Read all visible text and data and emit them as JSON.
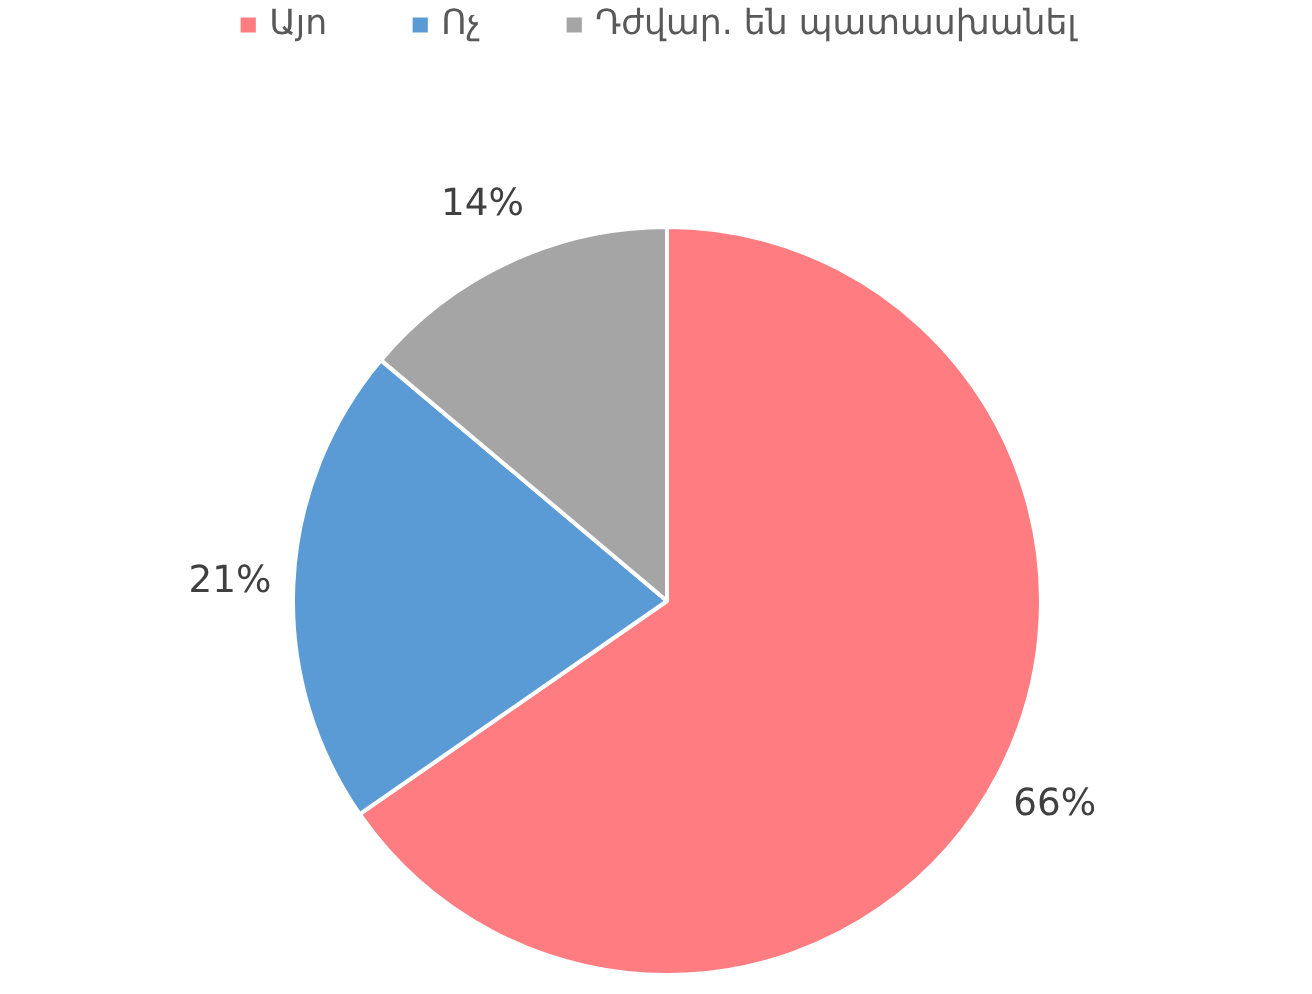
{
  "chart_data": {
    "type": "pie",
    "categories": [
      "Այո",
      "Ոչ",
      "Դժվար. են պատասխանել"
    ],
    "values": [
      66,
      21,
      14
    ],
    "colors": [
      "#ff7c80",
      "#5b9bd5",
      "#a5a5a5"
    ],
    "value_labels": [
      "66%",
      "21%",
      "14%"
    ],
    "legend": "top"
  }
}
